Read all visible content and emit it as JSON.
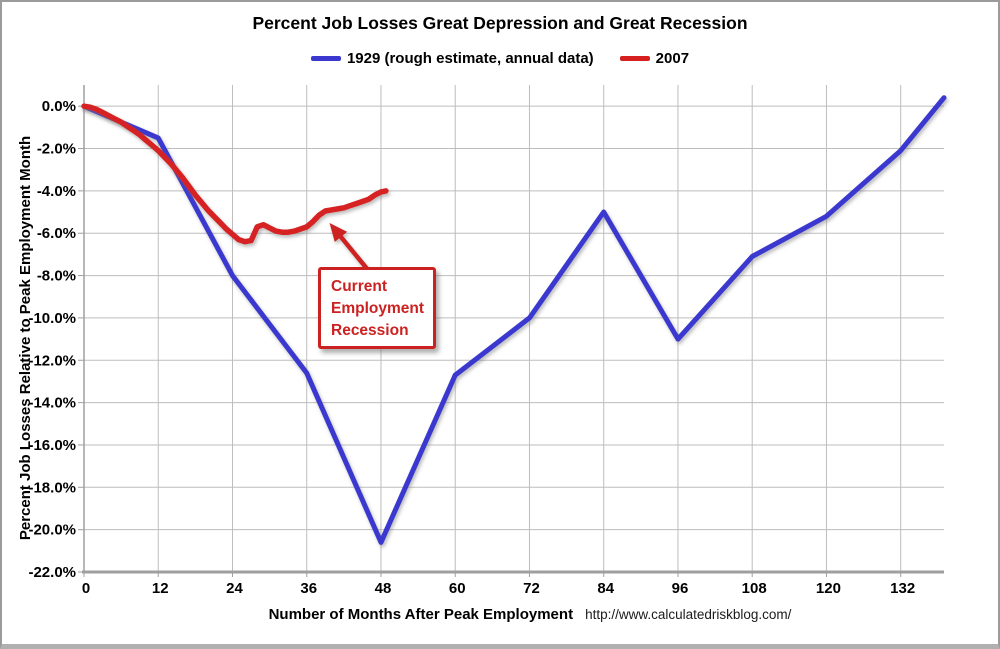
{
  "chart_data": {
    "type": "line",
    "title": "Percent Job Losses Great Depression and Great Recession",
    "xlabel": "Number of Months After Peak Employment",
    "ylabel": "Percent Job Losses Relative to Peak Employment Month",
    "source_text": "http://www.calculatedriskblog.com/",
    "xlim": [
      0,
      139
    ],
    "ylim": [
      -22,
      1
    ],
    "grid": true,
    "legend_position": "top-center",
    "x_ticks": [
      {
        "value": 0,
        "label": "0"
      },
      {
        "value": 12,
        "label": "12"
      },
      {
        "value": 24,
        "label": "24"
      },
      {
        "value": 36,
        "label": "36"
      },
      {
        "value": 48,
        "label": "48"
      },
      {
        "value": 60,
        "label": "60"
      },
      {
        "value": 72,
        "label": "72"
      },
      {
        "value": 84,
        "label": "84"
      },
      {
        "value": 96,
        "label": "96"
      },
      {
        "value": 108,
        "label": "108"
      },
      {
        "value": 120,
        "label": "120"
      },
      {
        "value": 132,
        "label": "132"
      }
    ],
    "y_ticks": [
      {
        "value": 0,
        "label": "0.0%"
      },
      {
        "value": -2,
        "label": "-2.0%"
      },
      {
        "value": -4,
        "label": "-4.0%"
      },
      {
        "value": -6,
        "label": "-6.0%"
      },
      {
        "value": -8,
        "label": "-8.0%"
      },
      {
        "value": -10,
        "label": "-10.0%"
      },
      {
        "value": -12,
        "label": "-12.0%"
      },
      {
        "value": -14,
        "label": "-14.0%"
      },
      {
        "value": -16,
        "label": "-16.0%"
      },
      {
        "value": -18,
        "label": "-18.0%"
      },
      {
        "value": -20,
        "label": "-20.0%"
      },
      {
        "value": -22,
        "label": "-22.0%"
      }
    ],
    "series": [
      {
        "name": "1929 (rough estimate, annual data)",
        "color": "#3b38cf",
        "x": [
          0,
          12,
          24,
          36,
          48,
          60,
          72,
          84,
          96,
          108,
          120,
          132,
          139
        ],
        "y": [
          0,
          -1.5,
          -8.0,
          -12.6,
          -20.6,
          -12.7,
          -10.0,
          -5.0,
          -11.0,
          -7.1,
          -5.2,
          -2.1,
          0.4
        ]
      },
      {
        "name": "2007",
        "color": "#d62020",
        "x": [
          0,
          1,
          2,
          3,
          4,
          5,
          6,
          7,
          8,
          9,
          10,
          11,
          12,
          13,
          14,
          15,
          16,
          17,
          18,
          19,
          20,
          21,
          22,
          23,
          24,
          25,
          26,
          27,
          28,
          29,
          30,
          31,
          32,
          33,
          34,
          35,
          36,
          37,
          38,
          39,
          40,
          41,
          42,
          43,
          44,
          45,
          46,
          47,
          48,
          48.8
        ],
        "y": [
          0,
          -0.05,
          -0.15,
          -0.3,
          -0.45,
          -0.6,
          -0.75,
          -0.95,
          -1.15,
          -1.35,
          -1.6,
          -1.85,
          -2.1,
          -2.4,
          -2.7,
          -3.05,
          -3.4,
          -3.8,
          -4.2,
          -4.55,
          -4.9,
          -5.2,
          -5.5,
          -5.8,
          -6.05,
          -6.3,
          -6.4,
          -6.35,
          -5.7,
          -5.6,
          -5.75,
          -5.9,
          -5.95,
          -5.95,
          -5.9,
          -5.8,
          -5.7,
          -5.45,
          -5.15,
          -4.95,
          -4.9,
          -4.85,
          -4.8,
          -4.7,
          -4.6,
          -4.5,
          -4.4,
          -4.2,
          -4.05,
          -4.0
        ]
      }
    ],
    "annotation": {
      "lines": [
        "Current",
        "Employment",
        "Recession"
      ],
      "color": "#cc2121",
      "arrow": {
        "from_x": 45.8,
        "from_y": -7.7,
        "to_x": 40.2,
        "to_y": -5.7
      }
    }
  }
}
